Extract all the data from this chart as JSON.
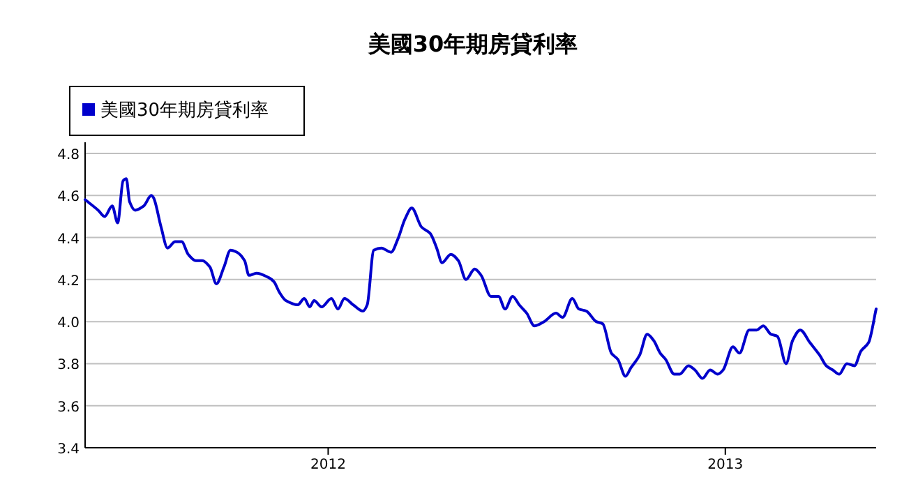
{
  "chart_data": {
    "type": "line",
    "title": "美國30年期房貸利率",
    "legend": "top left",
    "grid": "y",
    "line_style": "solid",
    "xlim": [
      "2011-05-22",
      "2013-05-20"
    ],
    "xticks": [
      {
        "value": "2012-01-01",
        "label": "2012"
      },
      {
        "value": "2013-01-01",
        "label": "2013"
      }
    ],
    "ylim": [
      3.4,
      4.8
    ],
    "yticks": [
      3.4,
      3.6,
      3.8,
      {
        "value": 4.0,
        "label": "4.0"
      },
      4.2,
      4.4,
      4.6,
      4.8
    ],
    "x": [
      "2011-05-22",
      "2011-06-03",
      "2011-06-09",
      "2011-06-16",
      "2011-06-21",
      "2011-06-26",
      "2011-06-29",
      "2011-07-02",
      "2011-07-07",
      "2011-07-15",
      "2011-07-22",
      "2011-07-24",
      "2011-07-31",
      "2011-08-06",
      "2011-08-13",
      "2011-08-19",
      "2011-08-25",
      "2011-09-01",
      "2011-09-07",
      "2011-09-14",
      "2011-09-20",
      "2011-09-27",
      "2011-10-03",
      "2011-10-09",
      "2011-10-16",
      "2011-10-20",
      "2011-10-27",
      "2011-11-07",
      "2011-11-12",
      "2011-11-17",
      "2011-11-23",
      "2011-12-04",
      "2011-12-10",
      "2011-12-15",
      "2011-12-19",
      "2011-12-26",
      "2012-01-04",
      "2012-01-10",
      "2012-01-16",
      "2012-01-24",
      "2012-02-02",
      "2012-02-06",
      "2012-02-12",
      "2012-02-19",
      "2012-02-28",
      "2012-03-05",
      "2012-03-12",
      "2012-03-18",
      "2012-03-27",
      "2012-04-04",
      "2012-04-10",
      "2012-04-15",
      "2012-04-23",
      "2012-04-30",
      "2012-05-07",
      "2012-05-15",
      "2012-05-21",
      "2012-05-30",
      "2012-06-06",
      "2012-06-12",
      "2012-06-19",
      "2012-06-25",
      "2012-07-02",
      "2012-07-09",
      "2012-07-18",
      "2012-07-29",
      "2012-08-04",
      "2012-08-13",
      "2012-08-19",
      "2012-08-26",
      "2012-09-04",
      "2012-09-10",
      "2012-09-18",
      "2012-09-24",
      "2012-10-01",
      "2012-10-06",
      "2012-10-14",
      "2012-10-21",
      "2012-10-27",
      "2012-11-02",
      "2012-11-07",
      "2012-11-15",
      "2012-11-20",
      "2012-11-28",
      "2012-12-04",
      "2012-12-11",
      "2012-12-18",
      "2012-12-25",
      "2012-12-30",
      "2013-01-08",
      "2013-01-14",
      "2013-01-23",
      "2013-01-30",
      "2013-02-05",
      "2013-02-12",
      "2013-02-18",
      "2013-02-26",
      "2013-03-04",
      "2013-03-11",
      "2013-03-20",
      "2013-03-29",
      "2013-04-04",
      "2013-04-10",
      "2013-04-16",
      "2013-04-23",
      "2013-04-30",
      "2013-05-06",
      "2013-05-13",
      "2013-05-20"
    ],
    "series": [
      {
        "name": "美國30年期房貸利率",
        "color": "#0000cc",
        "values": [
          4.58,
          4.53,
          4.5,
          4.55,
          4.47,
          4.67,
          4.68,
          4.57,
          4.53,
          4.55,
          4.6,
          4.59,
          4.45,
          4.35,
          4.38,
          4.38,
          4.32,
          4.29,
          4.29,
          4.26,
          4.18,
          4.26,
          4.34,
          4.33,
          4.29,
          4.22,
          4.23,
          4.21,
          4.19,
          4.14,
          4.1,
          4.08,
          4.11,
          4.07,
          4.1,
          4.07,
          4.11,
          4.06,
          4.11,
          4.08,
          4.05,
          4.08,
          4.34,
          4.35,
          4.33,
          4.39,
          4.49,
          4.54,
          4.45,
          4.42,
          4.35,
          4.28,
          4.32,
          4.29,
          4.2,
          4.25,
          4.22,
          4.12,
          4.12,
          4.06,
          4.12,
          4.08,
          4.04,
          3.98,
          4.0,
          4.04,
          4.02,
          4.11,
          4.06,
          4.05,
          4.0,
          3.99,
          3.85,
          3.82,
          3.74,
          3.78,
          3.84,
          3.94,
          3.91,
          3.85,
          3.82,
          3.75,
          3.75,
          3.79,
          3.77,
          3.73,
          3.77,
          3.75,
          3.77,
          3.88,
          3.85,
          3.96,
          3.96,
          3.98,
          3.94,
          3.93,
          3.8,
          3.91,
          3.96,
          3.9,
          3.84,
          3.79,
          3.77,
          3.75,
          3.8,
          3.79,
          3.86,
          3.9,
          4.06
        ]
      }
    ]
  }
}
